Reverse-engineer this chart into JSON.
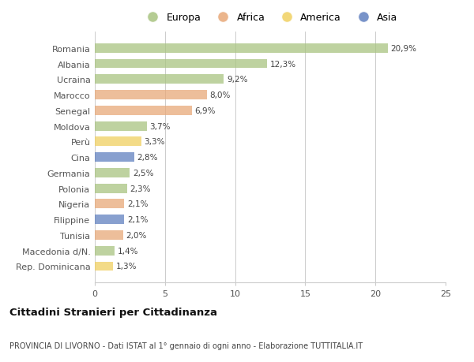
{
  "countries": [
    "Romania",
    "Albania",
    "Ucraina",
    "Marocco",
    "Senegal",
    "Moldova",
    "Perù",
    "Cina",
    "Germania",
    "Polonia",
    "Nigeria",
    "Filippine",
    "Tunisia",
    "Macedonia d/N.",
    "Rep. Dominicana"
  ],
  "values": [
    20.9,
    12.3,
    9.2,
    8.0,
    6.9,
    3.7,
    3.3,
    2.8,
    2.5,
    2.3,
    2.1,
    2.1,
    2.0,
    1.4,
    1.3
  ],
  "labels": [
    "20,9%",
    "12,3%",
    "9,2%",
    "8,0%",
    "6,9%",
    "3,7%",
    "3,3%",
    "2,8%",
    "2,5%",
    "2,3%",
    "2,1%",
    "2,1%",
    "2,0%",
    "1,4%",
    "1,3%"
  ],
  "categories": [
    "Europa",
    "Africa",
    "America",
    "Asia"
  ],
  "continent": [
    "Europa",
    "Europa",
    "Europa",
    "Africa",
    "Africa",
    "Europa",
    "America",
    "Asia",
    "Europa",
    "Europa",
    "Africa",
    "Asia",
    "Africa",
    "Europa",
    "America"
  ],
  "colors": {
    "Europa": "#a8c480",
    "Africa": "#e8a878",
    "America": "#f0d060",
    "Asia": "#6080c0"
  },
  "xlim": [
    0,
    25
  ],
  "xticks": [
    0,
    5,
    10,
    15,
    20,
    25
  ],
  "background_color": "#ffffff",
  "title": "Cittadini Stranieri per Cittadinanza",
  "subtitle": "PROVINCIA DI LIVORNO - Dati ISTAT al 1° gennaio di ogni anno - Elaborazione TUTTITALIA.IT",
  "grid_color": "#cccccc",
  "bar_alpha": 0.75,
  "bar_height": 0.6
}
